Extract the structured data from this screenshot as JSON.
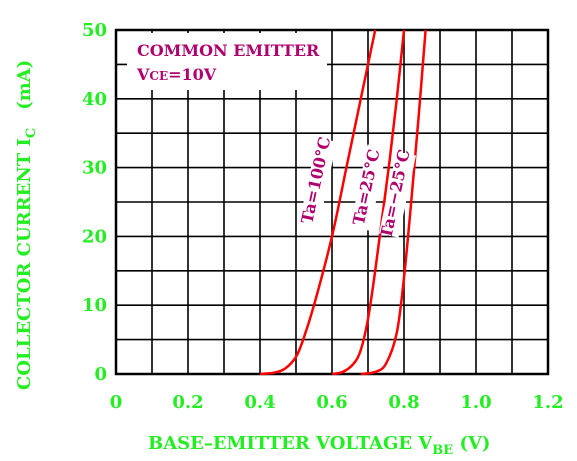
{
  "chart_data": {
    "type": "line",
    "title": "",
    "xlabel": "BASE–EMITTER VOLTAGE V",
    "xlabel_sub": "BE",
    "xlabel_unit": " (V)",
    "ylabel": "COLLECTOR CURRENT I",
    "ylabel_sub": "C",
    "ylabel_unit": "(mA)",
    "xlim": [
      0,
      1.2
    ],
    "ylim": [
      0,
      50
    ],
    "x_ticks": [
      "0",
      "0.2",
      "0.4",
      "0.6",
      "0.8",
      "1.0",
      "1.2"
    ],
    "y_ticks": [
      "0",
      "10",
      "20",
      "30",
      "40",
      "50"
    ],
    "grid": true,
    "annotation": {
      "line1": "COMMON  EMITTER",
      "line2_main": "V",
      "line2_sub": "CE",
      "line2_rest": "=10V"
    },
    "series": [
      {
        "name": "Ta=100°C",
        "color": "#ff0000",
        "label_color": "#b0006e",
        "points": [
          [
            0.4,
            0
          ],
          [
            0.44,
            0.2
          ],
          [
            0.47,
            0.8
          ],
          [
            0.5,
            2.5
          ],
          [
            0.52,
            5
          ],
          [
            0.55,
            10
          ],
          [
            0.6,
            20
          ],
          [
            0.64,
            30
          ],
          [
            0.68,
            40
          ],
          [
            0.7,
            45
          ],
          [
            0.72,
            50
          ]
        ]
      },
      {
        "name": "Ta=25°C",
        "color": "#ff0000",
        "label_color": "#b0006e",
        "points": [
          [
            0.6,
            0
          ],
          [
            0.63,
            0.3
          ],
          [
            0.66,
            1.5
          ],
          [
            0.68,
            3.5
          ],
          [
            0.7,
            8
          ],
          [
            0.72,
            15
          ],
          [
            0.74,
            23
          ],
          [
            0.76,
            31
          ],
          [
            0.78,
            40
          ],
          [
            0.8,
            50
          ]
        ]
      },
      {
        "name": "Ta=−25°C",
        "color": "#ff0000",
        "label_color": "#b0006e",
        "points": [
          [
            0.68,
            0
          ],
          [
            0.72,
            0.3
          ],
          [
            0.75,
            1.5
          ],
          [
            0.78,
            6
          ],
          [
            0.8,
            14
          ],
          [
            0.82,
            25
          ],
          [
            0.84,
            37
          ],
          [
            0.86,
            50
          ]
        ]
      }
    ]
  }
}
